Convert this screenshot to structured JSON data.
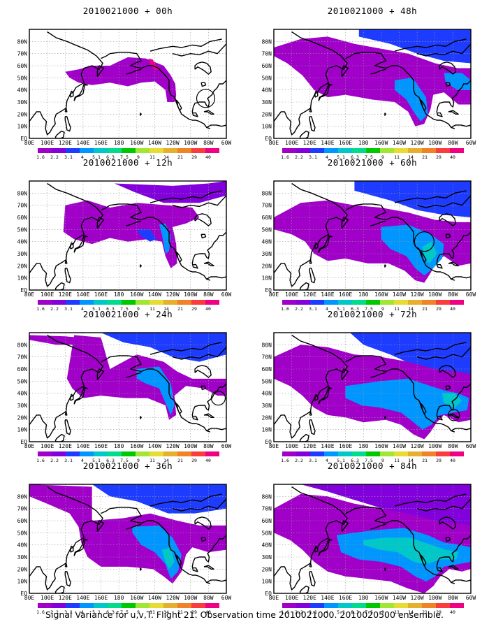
{
  "figure": {
    "caption": "Signal Variance for u,v,T. Flight 21. Observation time 2010021000. 2010020500 ensemble."
  },
  "panels": [
    {
      "title": "2010021000 + 00h",
      "lead": 0
    },
    {
      "title": "2010021000 + 48h",
      "lead": 48
    },
    {
      "title": "2010021000 + 12h",
      "lead": 12
    },
    {
      "title": "2010021000 + 60h",
      "lead": 60
    },
    {
      "title": "2010021000 + 24h",
      "lead": 24
    },
    {
      "title": "2010021000 + 72h",
      "lead": 72
    },
    {
      "title": "2010021000 + 36h",
      "lead": 36
    },
    {
      "title": "2010021000 + 84h",
      "lead": 84
    }
  ],
  "map": {
    "lon_labels": [
      "80E",
      "100E",
      "120E",
      "140E",
      "160E",
      "180",
      "160W",
      "140W",
      "120W",
      "100W",
      "80W",
      "60W"
    ],
    "lat_labels": [
      "EQ",
      "10N",
      "20N",
      "30N",
      "40N",
      "50N",
      "60N",
      "70N",
      "80N"
    ]
  },
  "colorbar": {
    "labels": [
      "1.6",
      "2.2",
      "3.1",
      "4",
      "5.1",
      "6.3",
      "7.5",
      "9",
      "11",
      "14",
      "21",
      "29",
      "40"
    ],
    "colors": [
      "#a000c8",
      "#8200dc",
      "#1e3cff",
      "#0096ff",
      "#00c8c8",
      "#00dc8c",
      "#00c800",
      "#a0e632",
      "#e6dc32",
      "#e6af2d",
      "#f08228",
      "#fa3c3c",
      "#f00082"
    ]
  }
}
